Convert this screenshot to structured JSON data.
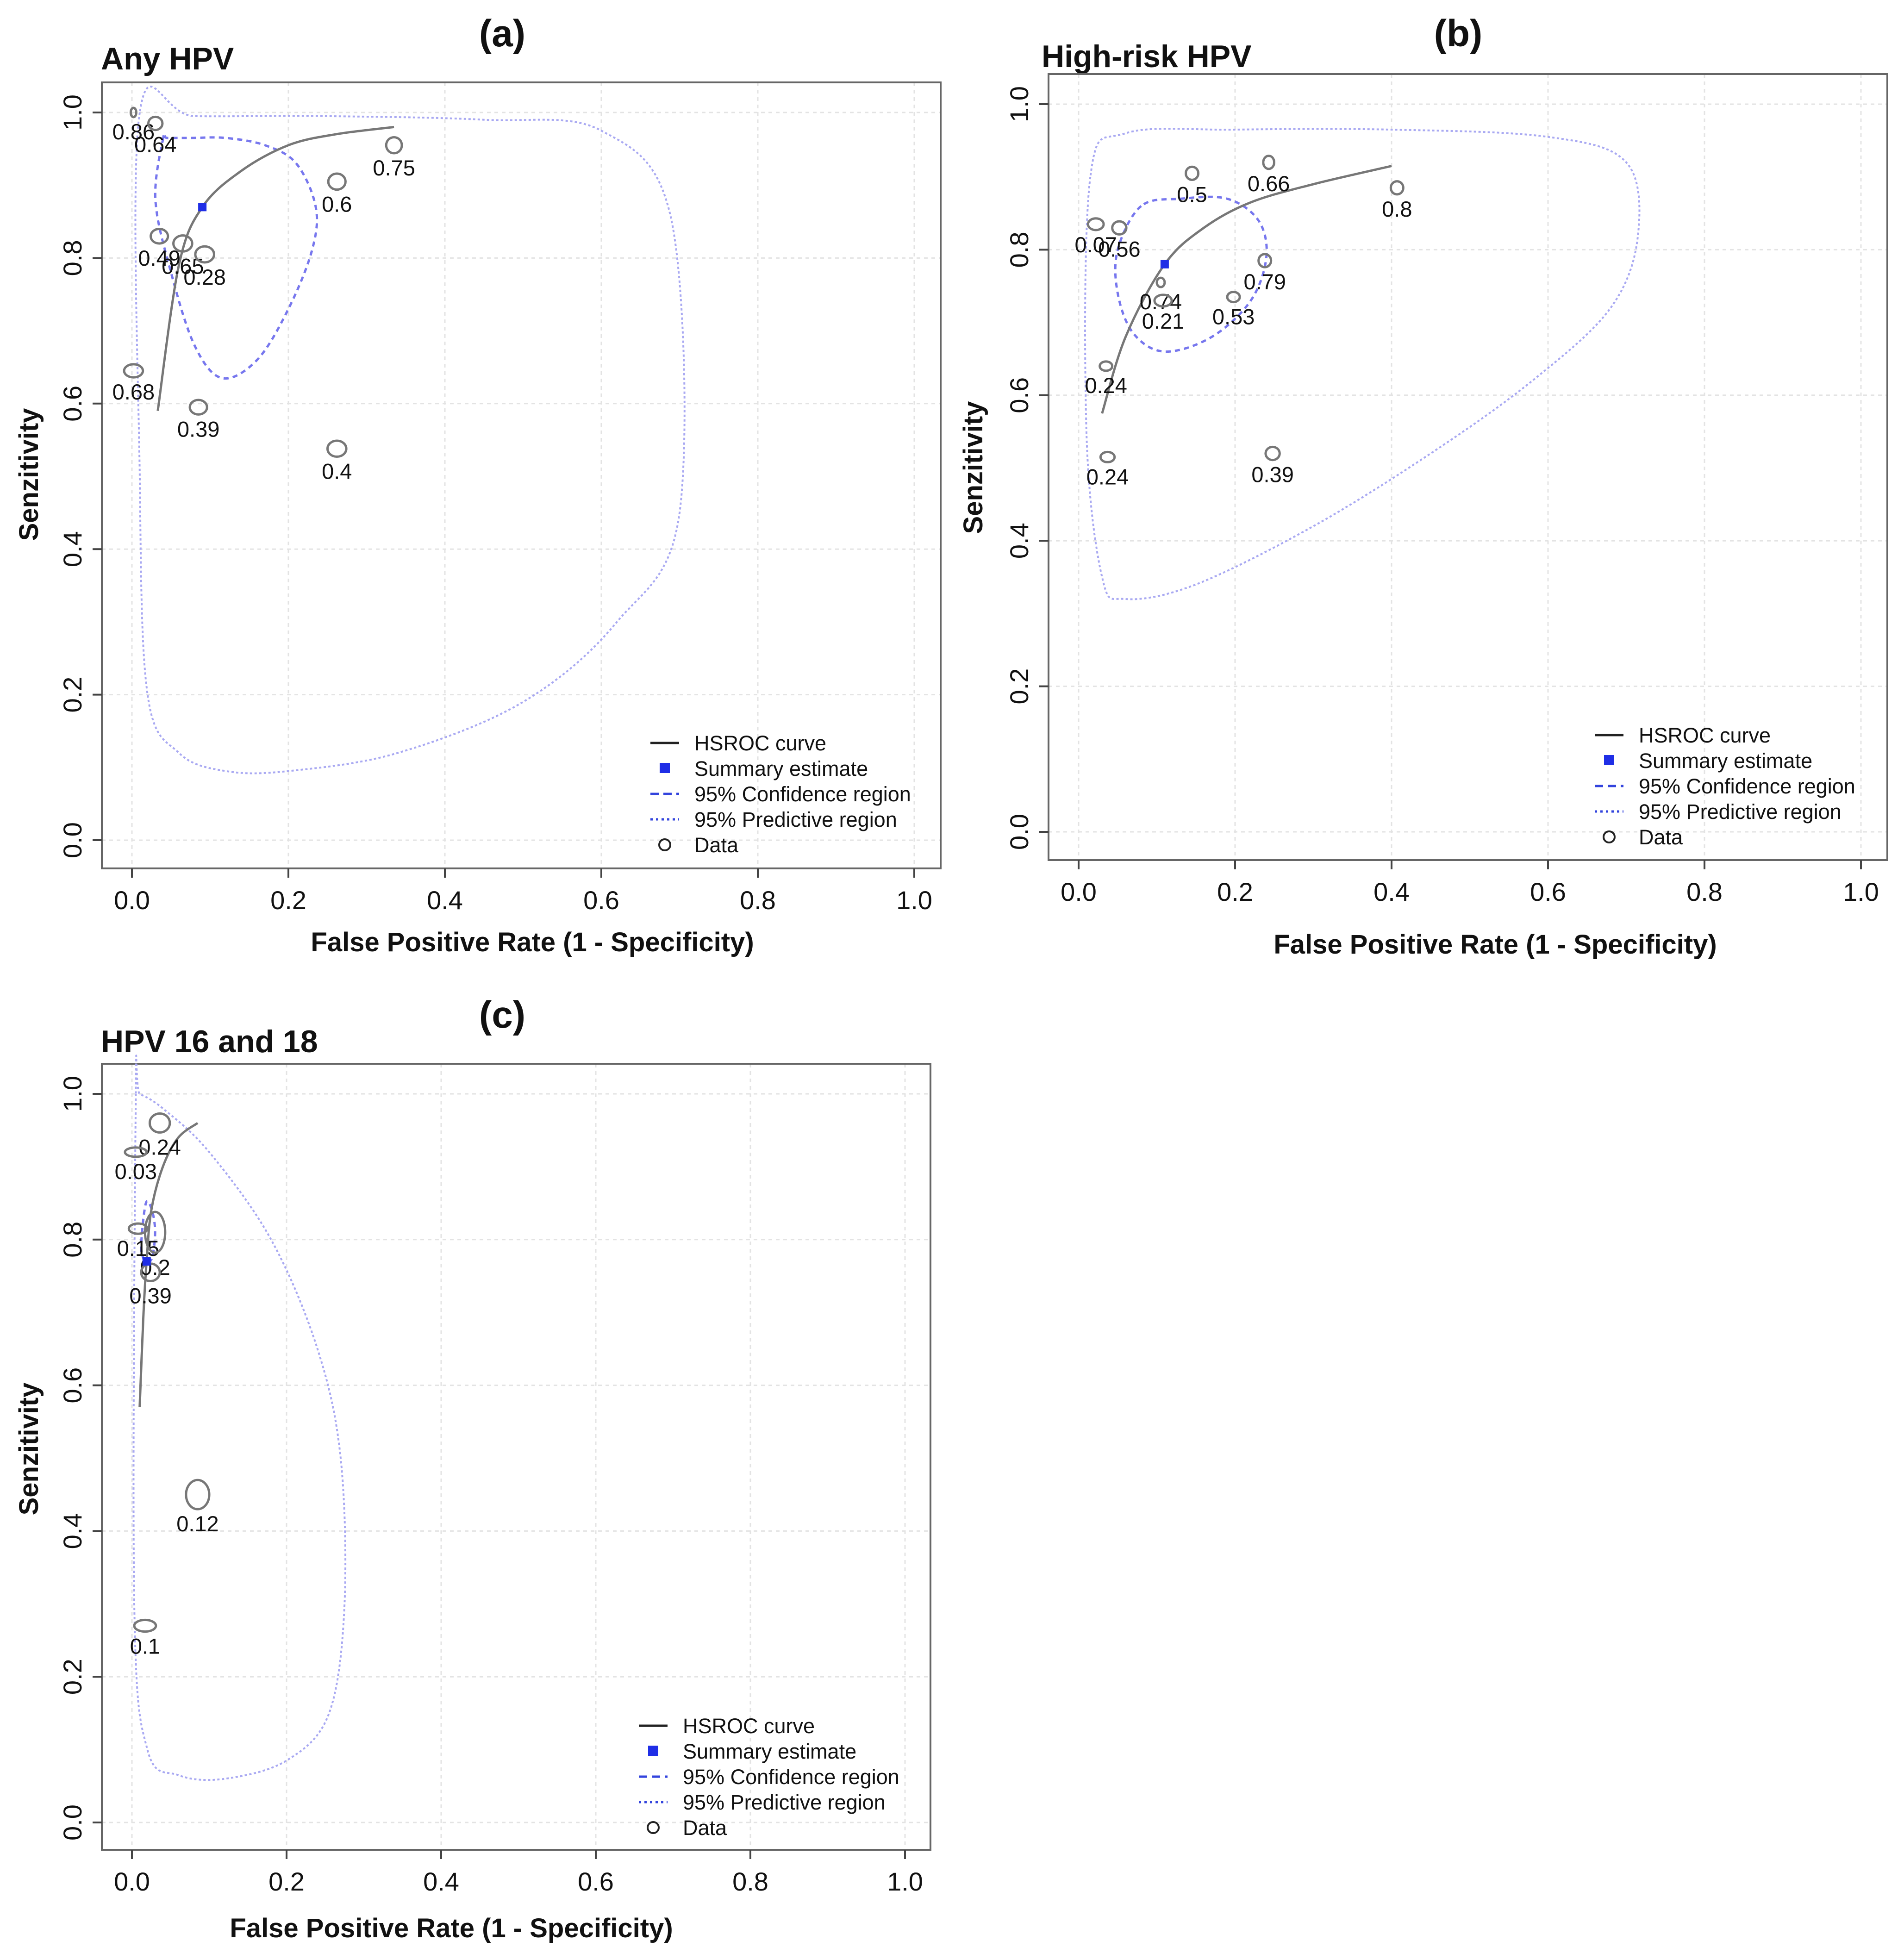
{
  "chart_data": [
    {
      "type": "scatter",
      "panel_label": "(a)",
      "title": "Any HPV",
      "xlabel": "False Positive Rate (1 - Specificity)",
      "ylabel": "Senzitivity",
      "xlim": [
        0,
        1
      ],
      "ylim": [
        0,
        1
      ],
      "x_ticks": [
        "0.0",
        "0.2",
        "0.4",
        "0.6",
        "0.8",
        "1.0"
      ],
      "y_ticks": [
        "0.0",
        "0.2",
        "0.4",
        "0.6",
        "0.8",
        "1.0"
      ],
      "grid": true,
      "legend_position": "bottom-right",
      "legend": [
        "HSROC curve",
        "Summary estimate",
        "95% Confidence region",
        "95% Predictive region",
        "Data"
      ],
      "summary_estimate": {
        "x": 0.09,
        "y": 0.87
      },
      "hsroc_curve": {
        "x": [
          0.033,
          0.06,
          0.09,
          0.14,
          0.2,
          0.26,
          0.335
        ],
        "y": [
          0.59,
          0.79,
          0.87,
          0.92,
          0.955,
          0.97,
          0.98
        ]
      },
      "confidence_region": {
        "x": [
          0.04,
          0.03,
          0.05,
          0.08,
          0.115,
          0.16,
          0.2,
          0.23,
          0.235,
          0.21,
          0.17,
          0.12,
          0.075,
          0.045,
          0.04
        ],
        "y": [
          0.965,
          0.88,
          0.78,
          0.68,
          0.635,
          0.66,
          0.73,
          0.81,
          0.87,
          0.93,
          0.955,
          0.965,
          0.965,
          0.965,
          0.965
        ]
      },
      "predictive_region": {
        "x": [
          0.01,
          0.01,
          0.02,
          0.06,
          0.12,
          0.2,
          0.34,
          0.5,
          0.62,
          0.7,
          0.69,
          0.6,
          0.45,
          0.25,
          0.08,
          0.01
        ],
        "y": [
          1.0,
          0.5,
          0.2,
          0.12,
          0.095,
          0.095,
          0.12,
          0.19,
          0.3,
          0.45,
          0.85,
          0.975,
          0.99,
          0.995,
          0.995,
          1.0
        ]
      },
      "data": [
        {
          "label": "0.86",
          "x": 0.002,
          "y": 1.0,
          "w": 0.002,
          "h": 0.012
        },
        {
          "label": "0.64",
          "x": 0.03,
          "y": 0.985,
          "w": 0.018,
          "h": 0.018
        },
        {
          "label": "0.75",
          "x": 0.335,
          "y": 0.955,
          "w": 0.02,
          "h": 0.022
        },
        {
          "label": "0.6",
          "x": 0.262,
          "y": 0.905,
          "w": 0.022,
          "h": 0.022
        },
        {
          "label": "0.49",
          "x": 0.035,
          "y": 0.83,
          "w": 0.022,
          "h": 0.02
        },
        {
          "label": "0.65",
          "x": 0.065,
          "y": 0.82,
          "w": 0.024,
          "h": 0.022
        },
        {
          "label": "0.28",
          "x": 0.093,
          "y": 0.805,
          "w": 0.024,
          "h": 0.022
        },
        {
          "label": "0.68",
          "x": 0.002,
          "y": 0.645,
          "w": 0.024,
          "h": 0.018
        },
        {
          "label": "0.39",
          "x": 0.085,
          "y": 0.595,
          "w": 0.022,
          "h": 0.02
        },
        {
          "label": "0.4",
          "x": 0.262,
          "y": 0.538,
          "w": 0.024,
          "h": 0.022
        }
      ]
    },
    {
      "type": "scatter",
      "panel_label": "(b)",
      "title": "High-risk HPV",
      "xlabel": "False Positive Rate (1 - Specificity)",
      "ylabel": "Senzitivity",
      "xlim": [
        0,
        1
      ],
      "ylim": [
        0,
        1
      ],
      "x_ticks": [
        "0.0",
        "0.2",
        "0.4",
        "0.6",
        "0.8",
        "1.0"
      ],
      "y_ticks": [
        "0.0",
        "0.2",
        "0.4",
        "0.6",
        "0.8",
        "1.0"
      ],
      "grid": true,
      "legend_position": "bottom-right",
      "legend": [
        "HSROC curve",
        "Summary estimate",
        "95% Confidence region",
        "95% Predictive region",
        "Data"
      ],
      "summary_estimate": {
        "x": 0.11,
        "y": 0.78
      },
      "hsroc_curve": {
        "x": [
          0.03,
          0.06,
          0.11,
          0.16,
          0.22,
          0.3,
          0.4
        ],
        "y": [
          0.575,
          0.68,
          0.78,
          0.83,
          0.865,
          0.89,
          0.915
        ]
      },
      "confidence_region": {
        "x": [
          0.08,
          0.05,
          0.05,
          0.07,
          0.11,
          0.17,
          0.22,
          0.24,
          0.23,
          0.19,
          0.13,
          0.08
        ],
        "y": [
          0.86,
          0.8,
          0.74,
          0.685,
          0.66,
          0.68,
          0.73,
          0.79,
          0.84,
          0.87,
          0.87,
          0.86
        ]
      },
      "predictive_region": {
        "x": [
          0.015,
          0.01,
          0.03,
          0.06,
          0.15,
          0.3,
          0.45,
          0.58,
          0.68,
          0.715,
          0.7,
          0.6,
          0.4,
          0.2,
          0.06,
          0.015
        ],
        "y": [
          0.9,
          0.55,
          0.35,
          0.32,
          0.34,
          0.42,
          0.52,
          0.62,
          0.72,
          0.82,
          0.92,
          0.955,
          0.965,
          0.965,
          0.96,
          0.9
        ]
      },
      "data": [
        {
          "label": "0.07",
          "x": 0.022,
          "y": 0.835,
          "w": 0.02,
          "h": 0.016
        },
        {
          "label": "0.56",
          "x": 0.052,
          "y": 0.83,
          "w": 0.018,
          "h": 0.018
        },
        {
          "label": "0.5",
          "x": 0.145,
          "y": 0.905,
          "w": 0.016,
          "h": 0.018
        },
        {
          "label": "0.66",
          "x": 0.243,
          "y": 0.92,
          "w": 0.014,
          "h": 0.018
        },
        {
          "label": "0.8",
          "x": 0.407,
          "y": 0.885,
          "w": 0.016,
          "h": 0.018
        },
        {
          "label": "0.74",
          "x": 0.105,
          "y": 0.755,
          "w": 0.01,
          "h": 0.012
        },
        {
          "label": "0.79",
          "x": 0.238,
          "y": 0.785,
          "w": 0.016,
          "h": 0.018
        },
        {
          "label": "0.21",
          "x": 0.108,
          "y": 0.73,
          "w": 0.022,
          "h": 0.016
        },
        {
          "label": "0.53",
          "x": 0.198,
          "y": 0.735,
          "w": 0.016,
          "h": 0.014
        },
        {
          "label": "0.24",
          "x": 0.035,
          "y": 0.64,
          "w": 0.016,
          "h": 0.012
        },
        {
          "label": "0.24",
          "x": 0.037,
          "y": 0.515,
          "w": 0.018,
          "h": 0.014
        },
        {
          "label": "0.39",
          "x": 0.248,
          "y": 0.52,
          "w": 0.018,
          "h": 0.018
        }
      ]
    },
    {
      "type": "scatter",
      "panel_label": "(c)",
      "title": "HPV 16 and 18",
      "xlabel": "False Positive Rate (1 - Specificity)",
      "ylabel": "Senzitivity",
      "xlim": [
        0,
        1
      ],
      "ylim": [
        0,
        1
      ],
      "x_ticks": [
        "0.0",
        "0.2",
        "0.4",
        "0.6",
        "0.8",
        "1.0"
      ],
      "y_ticks": [
        "0.0",
        "0.2",
        "0.4",
        "0.6",
        "0.8",
        "1.0"
      ],
      "grid": true,
      "legend_position": "bottom-right",
      "legend": [
        "HSROC curve",
        "Summary estimate",
        "95% Confidence region",
        "95% Predictive region",
        "Data"
      ],
      "summary_estimate": {
        "x": 0.019,
        "y": 0.77
      },
      "hsroc_curve": {
        "x": [
          0.01,
          0.015,
          0.019,
          0.025,
          0.04,
          0.06,
          0.085
        ],
        "y": [
          0.57,
          0.7,
          0.77,
          0.84,
          0.9,
          0.94,
          0.96
        ]
      },
      "confidence_region": {
        "x": [
          0.012,
          0.018,
          0.026,
          0.03,
          0.026,
          0.018,
          0.012
        ],
        "y": [
          0.79,
          0.77,
          0.775,
          0.81,
          0.84,
          0.85,
          0.79
        ]
      },
      "predictive_region": {
        "x": [
          0.005,
          0.003,
          0.02,
          0.06,
          0.12,
          0.2,
          0.255,
          0.275,
          0.27,
          0.24,
          0.18,
          0.1,
          0.04,
          0.01,
          0.005
        ],
        "y": [
          1.0,
          0.3,
          0.1,
          0.065,
          0.06,
          0.085,
          0.15,
          0.3,
          0.5,
          0.65,
          0.8,
          0.92,
          0.98,
          1.0,
          1.0
        ]
      },
      "data": [
        {
          "label": "0.24",
          "x": 0.036,
          "y": 0.96,
          "w": 0.026,
          "h": 0.026
        },
        {
          "label": "0.03",
          "x": 0.005,
          "y": 0.92,
          "w": 0.028,
          "h": 0.012
        },
        {
          "label": "0.15",
          "x": 0.008,
          "y": 0.815,
          "w": 0.024,
          "h": 0.014
        },
        {
          "label": "0.2",
          "x": 0.03,
          "y": 0.81,
          "w": 0.026,
          "h": 0.056
        },
        {
          "label": "0.39",
          "x": 0.024,
          "y": 0.755,
          "w": 0.024,
          "h": 0.024
        },
        {
          "label": "0.12",
          "x": 0.085,
          "y": 0.45,
          "w": 0.03,
          "h": 0.04
        },
        {
          "label": "0.1",
          "x": 0.017,
          "y": 0.27,
          "w": 0.028,
          "h": 0.016
        }
      ]
    }
  ],
  "colors": {
    "curve": "#777777",
    "summary": "#1f2ee6",
    "confidence": "#7777ee",
    "predictive": "#a9a9f2",
    "data": "#777777"
  }
}
